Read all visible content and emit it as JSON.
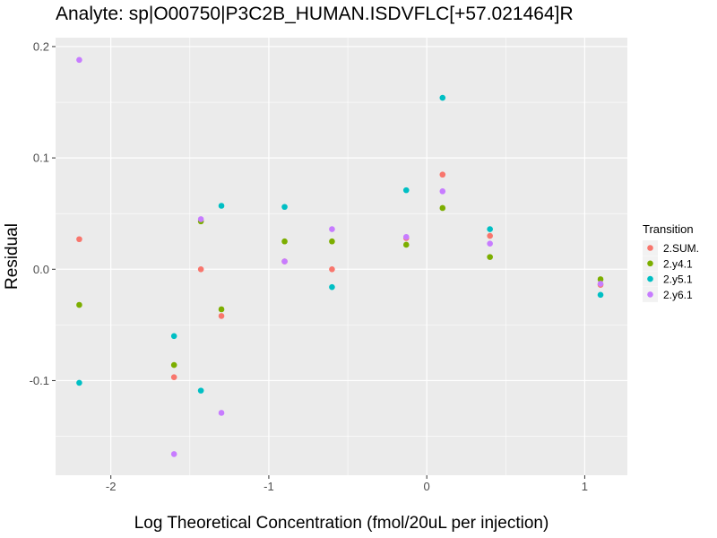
{
  "chart_data": {
    "type": "scatter",
    "title": "Analyte: sp|O00750|P3C2B_HUMAN.ISDVFLC[+57.021464]R",
    "xlabel": "Log Theoretical Concentration (fmol/20uL per injection)",
    "ylabel": "Residual",
    "xlim": [
      -2.35,
      1.27
    ],
    "ylim": [
      -0.185,
      0.208
    ],
    "x_ticks": [
      -2,
      -1,
      0,
      1
    ],
    "y_ticks": [
      -0.1,
      0.0,
      0.1,
      0.2
    ],
    "x_tick_labels": [
      "-2",
      "-1",
      "0",
      "1"
    ],
    "y_tick_labels": [
      "-0.1",
      "0.0",
      "0.1",
      "0.2"
    ],
    "grid": true,
    "background": "#ebebeb",
    "legend": {
      "title": "Transition",
      "position": "right"
    },
    "series": [
      {
        "name": "2.SUM.",
        "color": "#f8766d",
        "points": [
          [
            -2.2,
            0.027
          ],
          [
            -1.6,
            -0.097
          ],
          [
            -1.43,
            0.0
          ],
          [
            -1.3,
            -0.042
          ],
          [
            -0.9,
            0.007
          ],
          [
            -0.6,
            0.0
          ],
          [
            -0.13,
            0.028
          ],
          [
            0.1,
            0.085
          ],
          [
            0.4,
            0.03
          ],
          [
            1.1,
            -0.014
          ]
        ]
      },
      {
        "name": "2.y4.1",
        "color": "#7cae00",
        "points": [
          [
            -2.2,
            -0.032
          ],
          [
            -1.6,
            -0.086
          ],
          [
            -1.43,
            0.043
          ],
          [
            -1.3,
            -0.036
          ],
          [
            -0.9,
            0.025
          ],
          [
            -0.6,
            0.025
          ],
          [
            -0.13,
            0.022
          ],
          [
            0.1,
            0.055
          ],
          [
            0.4,
            0.011
          ],
          [
            1.1,
            -0.009
          ]
        ]
      },
      {
        "name": "2.y5.1",
        "color": "#00bfc4",
        "points": [
          [
            -2.2,
            -0.102
          ],
          [
            -1.6,
            -0.06
          ],
          [
            -1.43,
            -0.109
          ],
          [
            -1.3,
            0.057
          ],
          [
            -0.9,
            0.056
          ],
          [
            -0.6,
            -0.016
          ],
          [
            -0.13,
            0.071
          ],
          [
            0.1,
            0.154
          ],
          [
            0.4,
            0.036
          ],
          [
            1.1,
            -0.023
          ]
        ]
      },
      {
        "name": "2.y6.1",
        "color": "#c77cff",
        "points": [
          [
            -2.2,
            0.188
          ],
          [
            -1.6,
            -0.166
          ],
          [
            -1.43,
            0.045
          ],
          [
            -1.3,
            -0.129
          ],
          [
            -0.9,
            0.007
          ],
          [
            -0.6,
            0.036
          ],
          [
            -0.13,
            0.029
          ],
          [
            0.1,
            0.07
          ],
          [
            0.4,
            0.023
          ],
          [
            1.1,
            -0.013
          ]
        ]
      }
    ]
  }
}
